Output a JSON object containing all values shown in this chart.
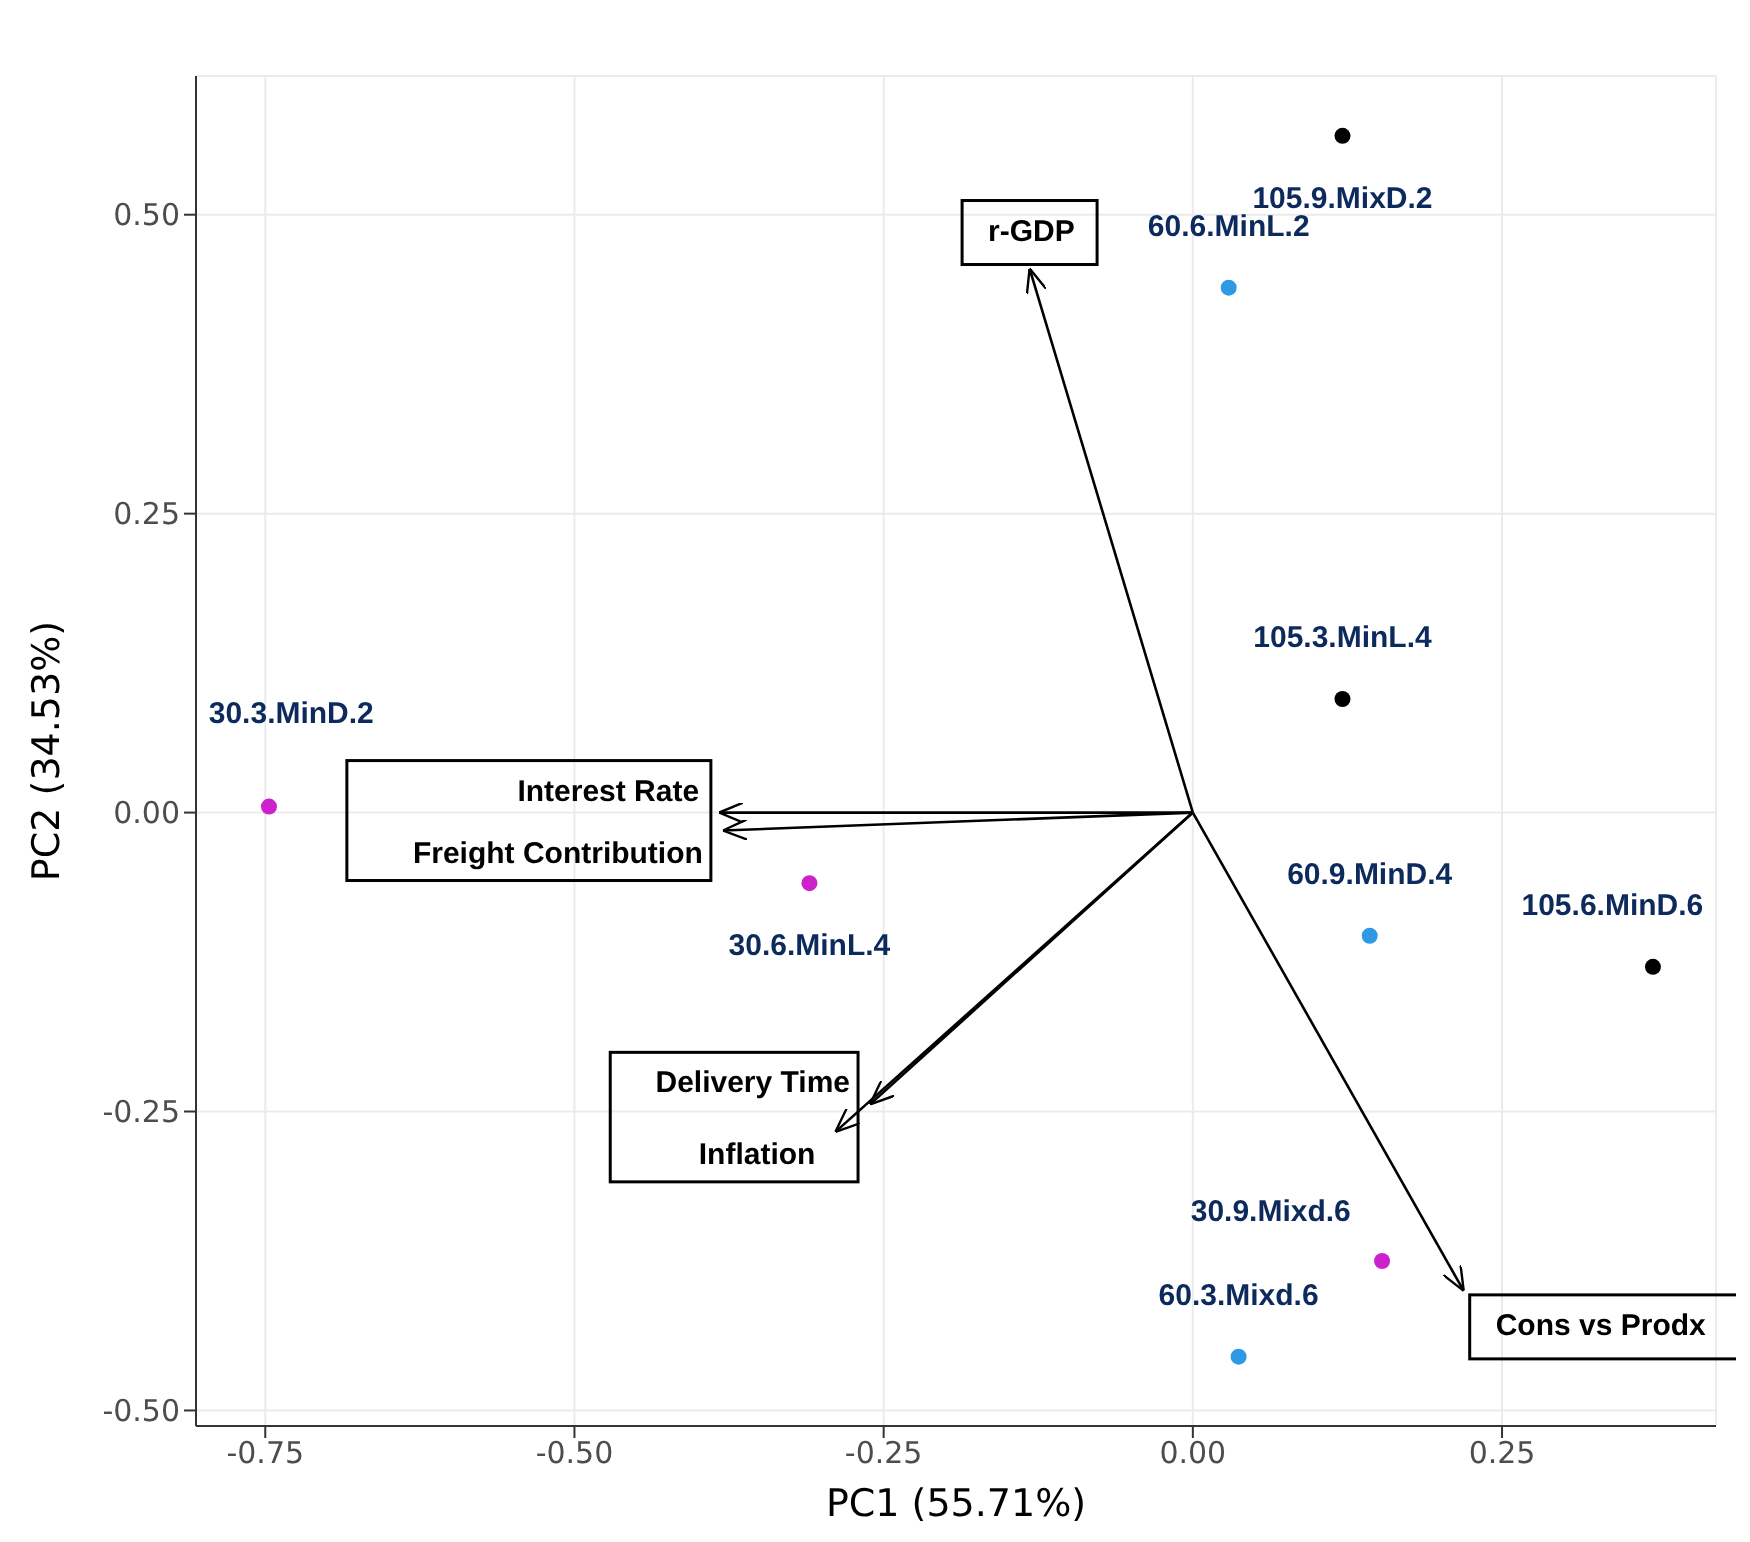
{
  "chart_data": {
    "type": "scatter",
    "xlabel": "PC1 (55.71%)",
    "ylabel": "PC2 (34.53%)",
    "xlim": [
      -0.806,
      0.423
    ],
    "ylim": [
      -0.513,
      0.616
    ],
    "xticks": [
      {
        "value": -0.75,
        "label": "-0.75"
      },
      {
        "value": -0.5,
        "label": "-0.50"
      },
      {
        "value": -0.25,
        "label": "-0.25"
      },
      {
        "value": 0,
        "label": "0.00"
      },
      {
        "value": 0.25,
        "label": "0.25"
      }
    ],
    "yticks": [
      {
        "value": -0.5,
        "label": "-0.50"
      },
      {
        "value": -0.25,
        "label": "-0.25"
      },
      {
        "value": 0,
        "label": "0.00"
      },
      {
        "value": 0.25,
        "label": "0.25"
      },
      {
        "value": 0.5,
        "label": "0.50"
      }
    ],
    "grid": true,
    "marker": "circle",
    "series": [
      {
        "color": "#000000",
        "x": [
          0.121,
          0.121,
          0.372
        ],
        "values": [
          0.566,
          0.095,
          -0.129
        ],
        "value_labels": [
          "105.9.MixD.2",
          "105.3.MinL.4",
          "105.6.MinD.6"
        ]
      },
      {
        "color": "#2e9ae6",
        "x": [
          0.029,
          0.143,
          0.037
        ],
        "values": [
          0.439,
          -0.103,
          -0.455
        ],
        "value_labels": [
          "60.6.MinL.2",
          "60.9.MinD.4",
          "60.3.Mixd.6"
        ]
      },
      {
        "color": "#cc22cc",
        "x": [
          -0.747,
          -0.31,
          0.153
        ],
        "values": [
          0.005,
          -0.059,
          -0.375
        ],
        "value_labels": [
          "30.3.MinD.2",
          "30.6.MinL.4",
          "30.9.Mixd.6"
        ]
      },
      {
        "type": "line",
        "marker": "none",
        "name": "r-GDP",
        "color": "#000000",
        "x": [
          0,
          -0.132
        ],
        "values": [
          0,
          0.455
        ]
      },
      {
        "type": "line",
        "marker": "none",
        "name": "Interest Rate",
        "color": "#000000",
        "x": [
          0,
          -0.383
        ],
        "values": [
          0,
          0.0
        ]
      },
      {
        "type": "line",
        "marker": "none",
        "name": "Freight Contribution",
        "color": "#000000",
        "x": [
          0,
          -0.38
        ],
        "values": [
          0,
          -0.015
        ]
      },
      {
        "type": "line",
        "marker": "none",
        "name": "Delivery Time",
        "color": "#000000",
        "x": [
          0,
          -0.261
        ],
        "values": [
          0,
          -0.244
        ]
      },
      {
        "type": "line",
        "marker": "none",
        "name": "Inflation",
        "color": "#000000",
        "x": [
          0,
          -0.289
        ],
        "values": [
          0,
          -0.267
        ]
      },
      {
        "type": "line",
        "marker": "none",
        "name": "Cons vs Prodx",
        "color": "#000000",
        "x": [
          0,
          0.219
        ],
        "values": [
          0,
          -0.4
        ]
      }
    ]
  }
}
